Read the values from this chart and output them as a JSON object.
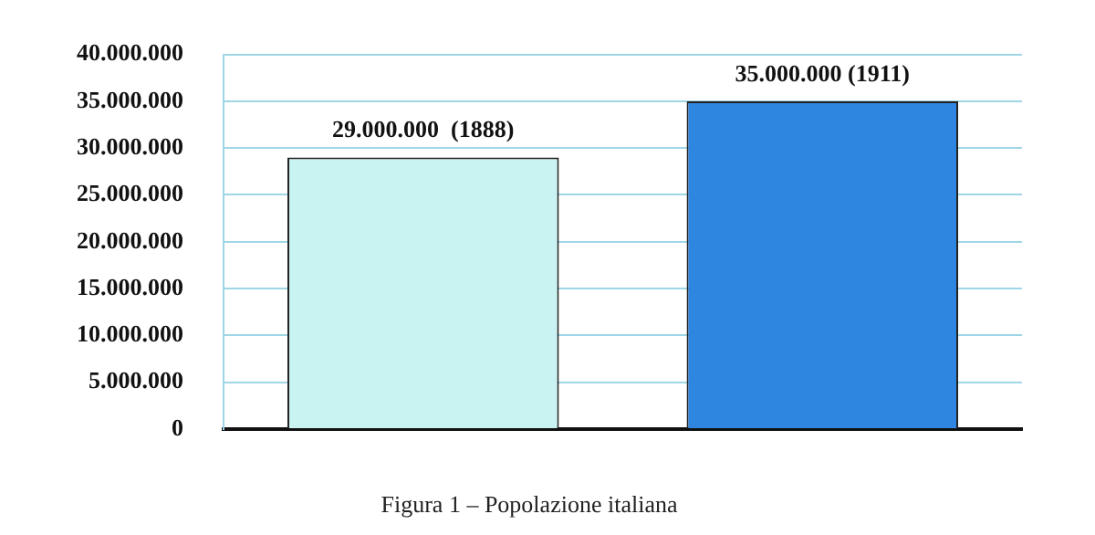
{
  "chart_data": {
    "type": "bar",
    "title": "Figura 1 – Popolazione italiana",
    "categories": [
      null,
      null
    ],
    "series": [
      {
        "colors": [
          "#c9f3f2",
          "#2f86e0"
        ],
        "values": [
          29000000,
          35000000
        ]
      }
    ],
    "value_labels": [
      "29.000.000  (1888)",
      "35.000.000 (1911)"
    ],
    "ylim": [
      0,
      40000000
    ],
    "yticks": [
      {
        "value": 0,
        "label": "0"
      },
      {
        "value": 5000000,
        "label": "5.000.000"
      },
      {
        "value": 10000000,
        "label": "10.000.000"
      },
      {
        "value": 15000000,
        "label": "15.000.000"
      },
      {
        "value": 20000000,
        "label": "20.000.000"
      },
      {
        "value": 25000000,
        "label": "25.000.000"
      },
      {
        "value": 30000000,
        "label": "30.000.000"
      },
      {
        "value": 35000000,
        "label": "35.000.000"
      },
      {
        "value": 40000000,
        "label": "40.000.000"
      }
    ],
    "grid": "y",
    "legend": false
  }
}
